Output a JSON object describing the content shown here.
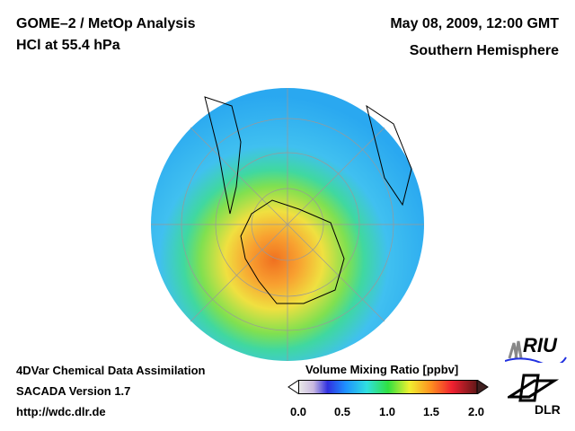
{
  "header": {
    "title_line1": "GOME–2 / MetOp Analysis",
    "title_line2": "HCl at 55.4 hPa",
    "date": "May 08, 2009, 12:00 GMT",
    "hemisphere": "Southern Hemisphere"
  },
  "footer": {
    "line1": "4DVar Chemical Data Assimilation",
    "line2": "SACADA Version 1.7",
    "url": "http://wdc.dlr.de"
  },
  "colorbar": {
    "title": "Volume Mixing Ratio [ppbv]",
    "ticks": [
      "0.0",
      "0.5",
      "1.0",
      "1.5",
      "2.0"
    ],
    "min": 0.0,
    "max": 2.0
  },
  "logos": {
    "riu": "RIU",
    "dlr": "DLR"
  }
}
